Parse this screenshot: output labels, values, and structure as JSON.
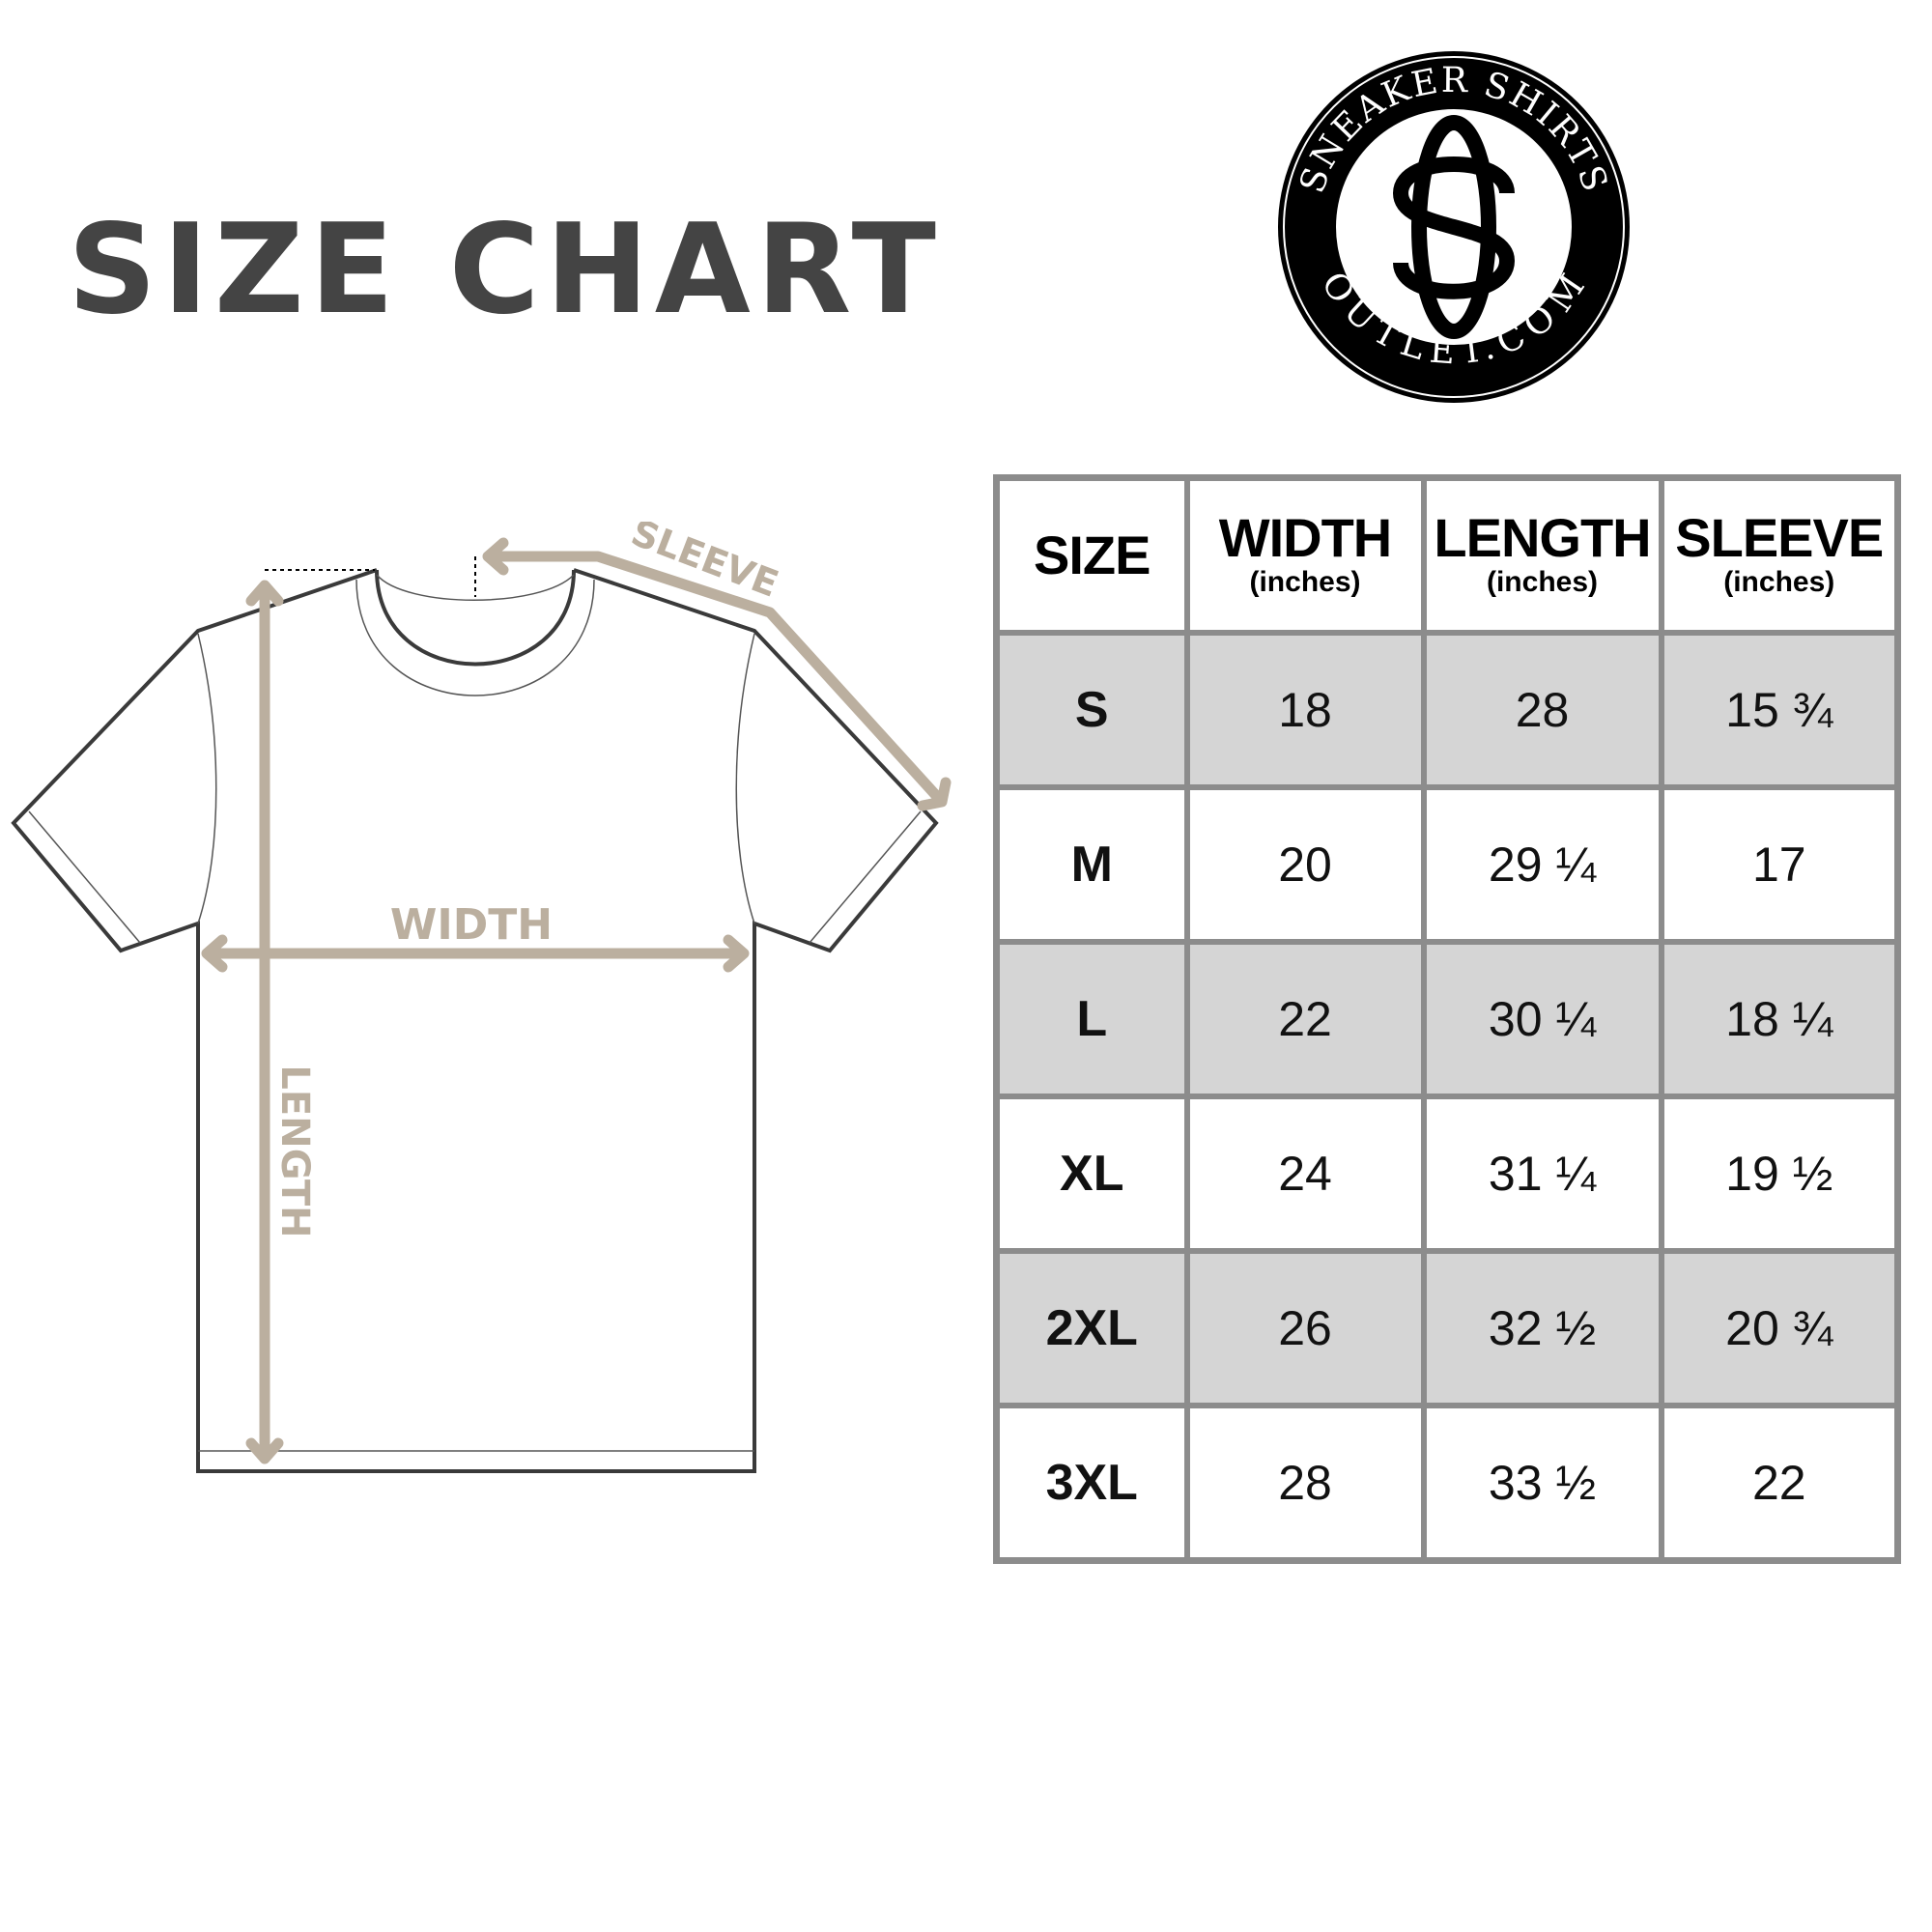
{
  "title": "SIZE CHART",
  "logo": {
    "top_text": "SNEAKER SHIRTS",
    "bottom_text": "OUTLET.COM",
    "monogram": "SO"
  },
  "diagram": {
    "sleeve_label": "SLEEVE",
    "width_label": "WIDTH",
    "length_label": "LENGTH",
    "accent_color": "#bbaf9f",
    "outline_color": "#3a3a3a"
  },
  "table": {
    "headers": [
      {
        "label": "SIZE",
        "unit": ""
      },
      {
        "label": "WIDTH",
        "unit": "(inches)"
      },
      {
        "label": "LENGTH",
        "unit": "(inches)"
      },
      {
        "label": "SLEEVE",
        "unit": "(inches)"
      }
    ],
    "rows": [
      [
        "S",
        "18",
        "28",
        "15 ¾"
      ],
      [
        "M",
        "20",
        "29 ¼",
        "17"
      ],
      [
        "L",
        "22",
        "30 ¼",
        "18 ¼"
      ],
      [
        "XL",
        "24",
        "31 ¼",
        "19 ½"
      ],
      [
        "2XL",
        "26",
        "32 ½",
        "20 ¾"
      ],
      [
        "3XL",
        "28",
        "33 ½",
        "22"
      ]
    ],
    "shade_color": "#d5d5d5",
    "border_color": "#8c8c8c"
  }
}
